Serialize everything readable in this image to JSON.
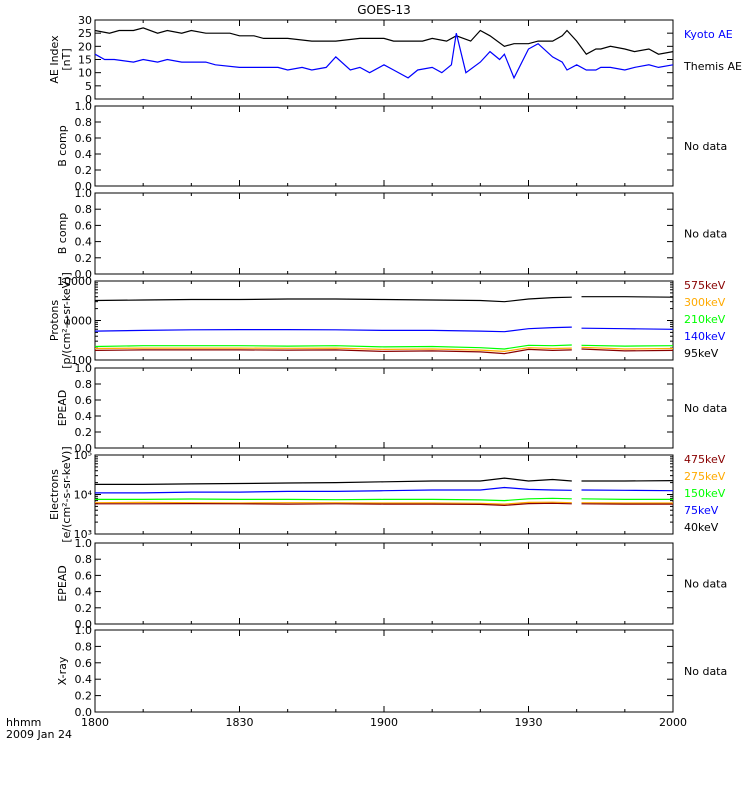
{
  "title": "GOES-13",
  "x_axis": {
    "ticks": [
      "1800",
      "1830",
      "1900",
      "1930",
      "2000"
    ],
    "corner_label_1": "hhmm",
    "corner_label_2": "2009 Jan 24"
  },
  "colors": {
    "black": "#000000",
    "blue": "#0000ff",
    "green": "#00ff00",
    "orange": "#ffaa00",
    "red": "#cc0000",
    "darkred": "#880000"
  },
  "chart_data": [
    {
      "type": "line",
      "panel": "ae-index",
      "ylabel": [
        "AE Index",
        "[nT]"
      ],
      "ylim": [
        0,
        30
      ],
      "yticks": [
        "0",
        "5",
        "10",
        "15",
        "20",
        "25",
        "30"
      ],
      "x_range_hhmm": [
        "18:00",
        "20:00"
      ],
      "legend": [
        {
          "text": "Kyoto AE",
          "color": "#0000ff"
        },
        {
          "text": "Themis AE",
          "color": "#000000"
        }
      ],
      "series": [
        {
          "name": "Themis AE",
          "color": "#000000",
          "x": [
            0,
            3,
            5,
            8,
            10,
            13,
            15,
            18,
            20,
            23,
            25,
            28,
            30,
            33,
            35,
            38,
            40,
            45,
            48,
            50,
            55,
            60,
            62,
            65,
            68,
            70,
            73,
            75,
            78,
            80,
            82,
            85,
            87,
            90,
            92,
            95,
            97,
            98,
            100,
            102,
            104,
            105,
            107,
            110,
            112,
            115,
            117,
            120
          ],
          "y": [
            26,
            25,
            26,
            26,
            27,
            25,
            26,
            25,
            26,
            25,
            25,
            25,
            24,
            24,
            23,
            23,
            23,
            22,
            22,
            22,
            23,
            23,
            22,
            22,
            22,
            23,
            22,
            24,
            22,
            26,
            24,
            20,
            21,
            21,
            22,
            22,
            24,
            26,
            22,
            17,
            19,
            19,
            20,
            19,
            18,
            19,
            17,
            18
          ]
        },
        {
          "name": "Kyoto AE",
          "color": "#0000ff",
          "x": [
            0,
            2,
            4,
            8,
            10,
            13,
            15,
            18,
            20,
            23,
            25,
            30,
            35,
            38,
            40,
            43,
            45,
            48,
            50,
            53,
            55,
            57,
            60,
            62,
            65,
            67,
            70,
            72,
            74,
            75,
            77,
            80,
            82,
            84,
            85,
            87,
            90,
            92,
            95,
            97,
            98,
            100,
            102,
            104,
            105,
            107,
            110,
            112,
            115,
            117,
            120
          ],
          "y": [
            17,
            15,
            15,
            14,
            15,
            14,
            15,
            14,
            14,
            14,
            13,
            12,
            12,
            12,
            11,
            12,
            11,
            12,
            16,
            11,
            12,
            10,
            13,
            11,
            8,
            11,
            12,
            10,
            13,
            25,
            10,
            14,
            18,
            15,
            17,
            8,
            19,
            21,
            16,
            14,
            11,
            13,
            11,
            11,
            12,
            12,
            11,
            12,
            13,
            12,
            13
          ]
        }
      ]
    },
    {
      "type": "line",
      "panel": "b-comp-1",
      "ylabel": "B comp",
      "ylim": [
        0,
        1
      ],
      "yticks": [
        "0.0",
        "0.2",
        "0.4",
        "0.6",
        "0.8",
        "1.0"
      ],
      "status": "No data"
    },
    {
      "type": "line",
      "panel": "b-comp-2",
      "ylabel": "B comp",
      "ylim": [
        0,
        1
      ],
      "yticks": [
        "0.0",
        "0.2",
        "0.4",
        "0.6",
        "0.8",
        "1.0"
      ],
      "status": "No data"
    },
    {
      "type": "line",
      "panel": "protons",
      "scale": "log",
      "ylabel": [
        "Protons",
        "[p/(cm²-s-sr-keV)]"
      ],
      "ylim": [
        100,
        10000
      ],
      "yticks": [
        "100",
        "1000",
        "10000"
      ],
      "gap_minutes": [
        99,
        101
      ],
      "legend": [
        {
          "text": "575keV",
          "color": "#880000"
        },
        {
          "text": "300keV",
          "color": "#ffaa00"
        },
        {
          "text": "210keV",
          "color": "#00ff00"
        },
        {
          "text": "140keV",
          "color": "#0000ff"
        },
        {
          "text": "95keV",
          "color": "#000000"
        }
      ],
      "series": [
        {
          "name": "95keV",
          "color": "#000000",
          "x": [
            0,
            10,
            20,
            30,
            40,
            50,
            60,
            70,
            80,
            85,
            90,
            95,
            99,
            101,
            110,
            120
          ],
          "y": [
            3200,
            3300,
            3400,
            3400,
            3500,
            3500,
            3400,
            3300,
            3200,
            3000,
            3500,
            3800,
            3900,
            4000,
            4000,
            3900
          ]
        },
        {
          "name": "140keV",
          "color": "#0000ff",
          "x": [
            0,
            10,
            20,
            30,
            40,
            50,
            60,
            70,
            80,
            85,
            90,
            95,
            99,
            101,
            110,
            120
          ],
          "y": [
            540,
            560,
            580,
            590,
            590,
            580,
            560,
            560,
            540,
            520,
            620,
            660,
            680,
            640,
            620,
            600
          ]
        },
        {
          "name": "210keV",
          "color": "#00ff00",
          "x": [
            0,
            10,
            20,
            30,
            40,
            50,
            60,
            70,
            80,
            85,
            90,
            95,
            99,
            101,
            110,
            120
          ],
          "y": [
            220,
            230,
            230,
            230,
            225,
            230,
            215,
            220,
            205,
            190,
            235,
            230,
            240,
            235,
            225,
            230
          ]
        },
        {
          "name": "300keV",
          "color": "#ffaa00",
          "x": [
            0,
            10,
            20,
            30,
            40,
            50,
            60,
            70,
            80,
            85,
            90,
            95,
            99,
            101,
            110,
            120
          ],
          "y": [
            195,
            200,
            200,
            200,
            198,
            200,
            185,
            190,
            178,
            165,
            205,
            195,
            200,
            210,
            190,
            195
          ]
        },
        {
          "name": "575keV",
          "color": "#880000",
          "x": [
            0,
            10,
            20,
            30,
            40,
            50,
            60,
            70,
            80,
            85,
            90,
            95,
            99,
            101,
            110,
            120
          ],
          "y": [
            175,
            180,
            180,
            180,
            178,
            180,
            165,
            170,
            160,
            145,
            185,
            175,
            180,
            190,
            170,
            175
          ]
        }
      ]
    },
    {
      "type": "line",
      "panel": "epead-1",
      "ylabel": "EPEAD",
      "ylim": [
        0,
        1
      ],
      "yticks": [
        "0.0",
        "0.2",
        "0.4",
        "0.6",
        "0.8",
        "1.0"
      ],
      "status": "No data"
    },
    {
      "type": "line",
      "panel": "electrons",
      "scale": "log",
      "ylabel": [
        "Electrons",
        "[e/(cm²-s-sr-keV)]"
      ],
      "ylim": [
        1000,
        100000
      ],
      "yticks": [
        "10³",
        "10⁴",
        "10⁵"
      ],
      "gap_minutes": [
        99,
        101
      ],
      "legend": [
        {
          "text": "475keV",
          "color": "#880000"
        },
        {
          "text": "275keV",
          "color": "#ffaa00"
        },
        {
          "text": "150keV",
          "color": "#00ff00"
        },
        {
          "text": "75keV",
          "color": "#0000ff"
        },
        {
          "text": "40keV",
          "color": "#000000"
        }
      ],
      "series": [
        {
          "name": "40keV",
          "color": "#000000",
          "x": [
            0,
            10,
            20,
            30,
            40,
            50,
            60,
            70,
            80,
            85,
            90,
            95,
            99,
            101,
            110,
            120
          ],
          "y": [
            18000,
            18000,
            18500,
            19000,
            19500,
            20000,
            21000,
            22000,
            22000,
            26000,
            22000,
            24000,
            22000,
            22000,
            22000,
            22500
          ]
        },
        {
          "name": "75keV",
          "color": "#0000ff",
          "x": [
            0,
            10,
            20,
            30,
            40,
            50,
            60,
            70,
            80,
            85,
            90,
            95,
            99,
            101,
            110,
            120
          ],
          "y": [
            11000,
            11000,
            11500,
            11500,
            12000,
            12000,
            12500,
            13000,
            13000,
            15000,
            13500,
            13000,
            12800,
            13000,
            12800,
            12500
          ]
        },
        {
          "name": "150keV",
          "color": "#00ff00",
          "x": [
            0,
            10,
            20,
            30,
            40,
            50,
            60,
            70,
            80,
            85,
            90,
            95,
            99,
            101,
            110,
            120
          ],
          "y": [
            7500,
            7500,
            7700,
            7500,
            7500,
            7400,
            7500,
            7500,
            7300,
            7000,
            7800,
            8000,
            7800,
            7800,
            7500,
            7500
          ]
        },
        {
          "name": "275keV",
          "color": "#ffaa00",
          "x": [
            0,
            10,
            20,
            30,
            40,
            50,
            60,
            70,
            80,
            85,
            90,
            95,
            99,
            101,
            110,
            120
          ],
          "y": [
            6200,
            6300,
            6200,
            6100,
            6200,
            6200,
            6100,
            6100,
            6000,
            5700,
            6300,
            6400,
            6200,
            6200,
            6100,
            6100
          ]
        },
        {
          "name": "475keV",
          "color": "#880000",
          "x": [
            0,
            10,
            20,
            30,
            40,
            50,
            60,
            70,
            80,
            85,
            90,
            95,
            99,
            101,
            110,
            120
          ],
          "y": [
            5800,
            5800,
            5900,
            5800,
            5700,
            5800,
            5700,
            5700,
            5600,
            5300,
            5900,
            6000,
            5800,
            5800,
            5700,
            5700
          ]
        }
      ]
    },
    {
      "type": "line",
      "panel": "epead-2",
      "ylabel": "EPEAD",
      "ylim": [
        0,
        1
      ],
      "yticks": [
        "0.0",
        "0.2",
        "0.4",
        "0.6",
        "0.8",
        "1.0"
      ],
      "status": "No data"
    },
    {
      "type": "line",
      "panel": "x-ray",
      "ylabel": "X-ray",
      "ylim": [
        0,
        1
      ],
      "yticks": [
        "0.0",
        "0.2",
        "0.4",
        "0.6",
        "0.8",
        "1.0"
      ],
      "status": "No data"
    }
  ]
}
